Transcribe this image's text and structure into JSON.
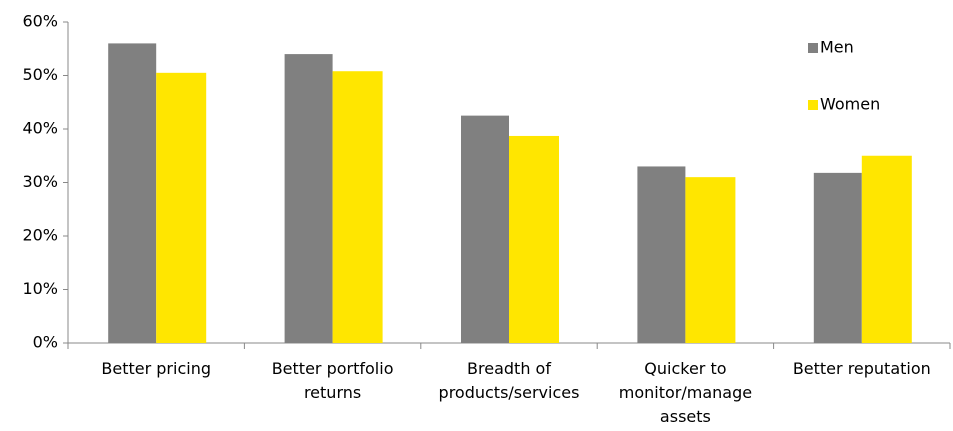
{
  "chart_data": {
    "type": "bar",
    "categories": [
      [
        "Better pricing"
      ],
      [
        "Better portfolio",
        "returns"
      ],
      [
        "Breadth of",
        "products/services"
      ],
      [
        "Quicker to",
        "monitor/manage",
        "assets"
      ],
      [
        "Better reputation"
      ]
    ],
    "series": [
      {
        "name": "Men",
        "color": "#808080",
        "values": [
          56,
          54,
          42.5,
          33,
          31.8
        ]
      },
      {
        "name": "Women",
        "color": "#ffe600",
        "values": [
          50.5,
          50.8,
          38.7,
          31,
          35
        ]
      }
    ],
    "ylim": [
      0,
      60
    ],
    "yticks": [
      {
        "value": 0,
        "label": "0%"
      },
      {
        "value": 10,
        "label": "10%"
      },
      {
        "value": 20,
        "label": "20%"
      },
      {
        "value": 30,
        "label": "30%"
      },
      {
        "value": 40,
        "label": "40%"
      },
      {
        "value": 50,
        "label": "50%"
      },
      {
        "value": 60,
        "label": "60%"
      }
    ],
    "grid": false,
    "legend": "top-right"
  }
}
